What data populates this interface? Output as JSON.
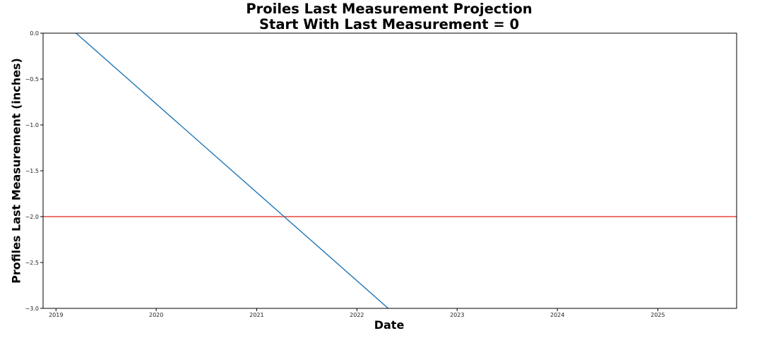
{
  "chart_data": {
    "type": "line",
    "title": [
      "Proiles Last Measurement Projection",
      "Start With Last Measurement = 0"
    ],
    "xlabel": "Date",
    "ylabel": "Profiles Last Measurement (inches)",
    "xlim": [
      "2018-11-15",
      "2025-10-15"
    ],
    "ylim": [
      -3.0,
      0.0
    ],
    "x_ticks": [
      "2019",
      "2020",
      "2021",
      "2022",
      "2023",
      "2024",
      "2025"
    ],
    "y_ticks": [
      "0.0",
      "−0.5",
      "−1.0",
      "−1.5",
      "−2.0",
      "−2.5",
      "−3.0"
    ],
    "y_tick_values": [
      0.0,
      -0.5,
      -1.0,
      -1.5,
      -2.0,
      -2.5,
      -3.0
    ],
    "grid": false,
    "series": [
      {
        "color": "#1f77b4",
        "x": [
          "2019-03-15",
          "2022-04-25"
        ],
        "y": [
          0.0,
          -3.0
        ]
      }
    ],
    "hlines": [
      {
        "y": -2.0,
        "color": "#e8463c"
      }
    ]
  }
}
